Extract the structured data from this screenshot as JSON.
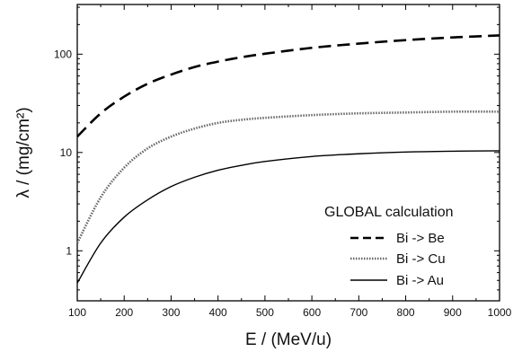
{
  "chart_data": {
    "type": "line",
    "xlabel": "E / (MeV/u)",
    "ylabel": "λ / (mg/cm²)",
    "xlim": [
      100,
      1000
    ],
    "ylim": [
      0.31,
      320
    ],
    "yscale": "log",
    "grid": false,
    "x_ticks": [
      100,
      200,
      300,
      400,
      500,
      600,
      700,
      800,
      900,
      1000
    ],
    "y_ticks": [
      1,
      10,
      100
    ],
    "legend": {
      "title": "GLOBAL calculation",
      "placement": "bottom-right"
    },
    "x": [
      100,
      150,
      200,
      250,
      300,
      350,
      400,
      450,
      500,
      600,
      700,
      800,
      900,
      1000
    ],
    "series": [
      {
        "name": "Bi -> Be",
        "line_style": "dashed",
        "color": "#000000",
        "values": [
          14.5,
          25,
          37,
          50,
          62,
          74,
          84,
          93,
          101,
          116,
          128,
          139,
          148,
          155
        ]
      },
      {
        "name": "Bi -> Cu",
        "line_style": "dotted",
        "color": "#666666",
        "values": [
          1.2,
          3.5,
          7.0,
          11.0,
          14.5,
          17.5,
          20.0,
          21.5,
          22.5,
          24.0,
          25.0,
          25.5,
          26.0,
          26.0
        ]
      },
      {
        "name": "Bi -> Au",
        "line_style": "solid",
        "color": "#000000",
        "values": [
          0.47,
          1.2,
          2.2,
          3.3,
          4.5,
          5.6,
          6.6,
          7.4,
          8.1,
          9.1,
          9.7,
          10.1,
          10.3,
          10.4
        ]
      }
    ]
  }
}
